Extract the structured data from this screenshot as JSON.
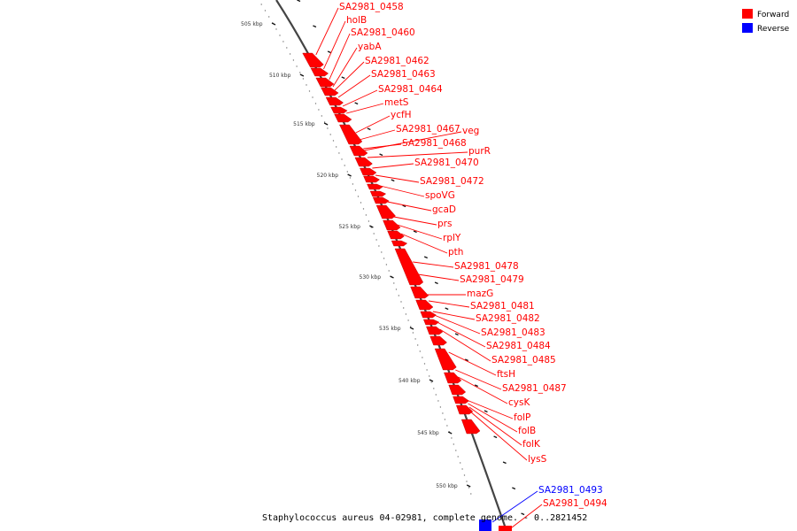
{
  "caption": "Staphylococcus aureus 04-02981, complete genome. - 0..2821452",
  "legend": [
    {
      "label": "Forward",
      "color": "#ff0000"
    },
    {
      "label": "Reverse",
      "color": "#0000ff"
    }
  ],
  "ticks": [
    "505 kbp",
    "510 kbp",
    "515 kbp",
    "520 kbp",
    "525 kbp",
    "530 kbp",
    "535 kbp",
    "540 kbp",
    "545 kbp",
    "550 kbp"
  ],
  "genes": [
    {
      "name": "SA2981_0458",
      "strand": "forward"
    },
    {
      "name": "holB",
      "strand": "forward"
    },
    {
      "name": "SA2981_0460",
      "strand": "forward"
    },
    {
      "name": "yabA",
      "strand": "forward"
    },
    {
      "name": "SA2981_0462",
      "strand": "forward"
    },
    {
      "name": "SA2981_0463",
      "strand": "forward"
    },
    {
      "name": "SA2981_0464",
      "strand": "forward"
    },
    {
      "name": "metS",
      "strand": "forward"
    },
    {
      "name": "ycfH",
      "strand": "forward"
    },
    {
      "name": "SA2981_0467",
      "strand": "forward"
    },
    {
      "name": "veg",
      "strand": "forward"
    },
    {
      "name": "SA2981_0468",
      "strand": "forward"
    },
    {
      "name": "purR",
      "strand": "forward"
    },
    {
      "name": "SA2981_0470",
      "strand": "forward"
    },
    {
      "name": "SA2981_0472",
      "strand": "forward"
    },
    {
      "name": "spoVG",
      "strand": "forward"
    },
    {
      "name": "gcaD",
      "strand": "forward"
    },
    {
      "name": "prs",
      "strand": "forward"
    },
    {
      "name": "rplY",
      "strand": "forward"
    },
    {
      "name": "pth",
      "strand": "forward"
    },
    {
      "name": "SA2981_0478",
      "strand": "forward"
    },
    {
      "name": "SA2981_0479",
      "strand": "forward"
    },
    {
      "name": "mazG",
      "strand": "forward"
    },
    {
      "name": "SA2981_0481",
      "strand": "forward"
    },
    {
      "name": "SA2981_0482",
      "strand": "forward"
    },
    {
      "name": "SA2981_0483",
      "strand": "forward"
    },
    {
      "name": "SA2981_0484",
      "strand": "forward"
    },
    {
      "name": "SA2981_0485",
      "strand": "forward"
    },
    {
      "name": "ftsH",
      "strand": "forward"
    },
    {
      "name": "SA2981_0487",
      "strand": "forward"
    },
    {
      "name": "cysK",
      "strand": "forward"
    },
    {
      "name": "folP",
      "strand": "forward"
    },
    {
      "name": "folB",
      "strand": "forward"
    },
    {
      "name": "folK",
      "strand": "forward"
    },
    {
      "name": "lysS",
      "strand": "forward"
    },
    {
      "name": "SA2981_0493",
      "strand": "reverse"
    },
    {
      "name": "SA2981_0494",
      "strand": "forward"
    }
  ]
}
